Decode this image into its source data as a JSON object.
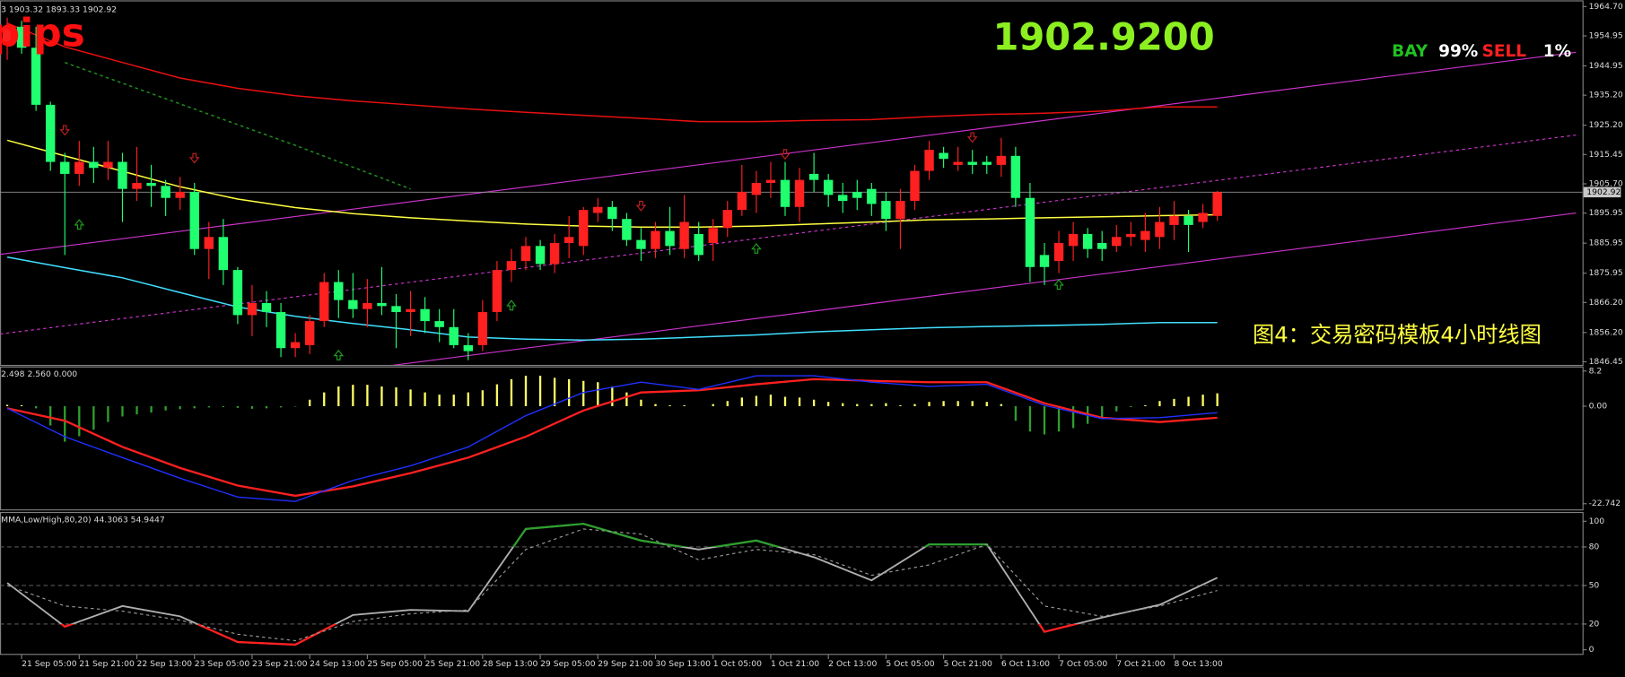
{
  "chart_data": [
    {
      "type": "candlestick",
      "header": "3 1903.32 1893.33 1902.92",
      "pips": "pips",
      "price_big": "1902.9200",
      "bay": "BAY",
      "bay_pct": "99%",
      "sell": "SELL",
      "sell_pct": "1%",
      "caption": "图4：交易密码模板4小时线图",
      "last_price": 1902.92,
      "up_color": "#ff2020",
      "down_color": "#20ff70",
      "open": [
        1952,
        1958,
        1951,
        1932,
        1913,
        1909,
        1913,
        1911,
        1913,
        1904,
        1906,
        1905,
        1901,
        1903,
        1884,
        1888,
        1877,
        1862,
        1866,
        1863,
        1851,
        1852,
        1860,
        1873,
        1867,
        1864,
        1866,
        1865,
        1863,
        1864,
        1860,
        1858,
        1852,
        1852,
        1863,
        1877,
        1880,
        1885,
        1879,
        1886,
        1885,
        1896,
        1898,
        1894,
        1887,
        1884,
        1890,
        1884,
        1889,
        1886,
        1891,
        1897,
        1902,
        1906,
        1907,
        1898,
        1909,
        1907,
        1902,
        1903,
        1904,
        1900,
        1894,
        1900,
        1910,
        1916,
        1912,
        1913,
        1913,
        1912,
        1915,
        1901,
        1882,
        1880,
        1885,
        1889,
        1886,
        1885,
        1888,
        1887,
        1888,
        1892,
        1895,
        1893,
        1895
      ],
      "high": [
        1961,
        1960,
        1958,
        1933,
        1916,
        1920,
        1918,
        1920,
        1916,
        1918,
        1912,
        1907,
        1908,
        1906,
        1893,
        1894,
        1878,
        1872,
        1870,
        1866,
        1856,
        1862,
        1876,
        1877,
        1876,
        1874,
        1878,
        1869,
        1870,
        1868,
        1864,
        1864,
        1856,
        1867,
        1880,
        1884,
        1888,
        1887,
        1889,
        1895,
        1898,
        1901,
        1900,
        1896,
        1891,
        1893,
        1898,
        1902,
        1893,
        1894,
        1900,
        1912,
        1910,
        1913,
        1913,
        1911,
        1916,
        1909,
        1906,
        1907,
        1906,
        1903,
        1904,
        1912,
        1920,
        1918,
        1918,
        1917,
        1915,
        1921,
        1918,
        1906,
        1886,
        1890,
        1893,
        1891,
        1890,
        1892,
        1893,
        1896,
        1898,
        1900,
        1897,
        1899,
        1903.32
      ],
      "low": [
        1947,
        1949,
        1930,
        1910,
        1882,
        1905,
        1906,
        1907,
        1893,
        1900,
        1898,
        1895,
        1897,
        1882,
        1874,
        1872,
        1859,
        1855,
        1858,
        1848,
        1848,
        1849,
        1858,
        1861,
        1861,
        1858,
        1862,
        1851,
        1855,
        1856,
        1853,
        1851,
        1847,
        1850,
        1860,
        1873,
        1877,
        1877,
        1876,
        1881,
        1882,
        1893,
        1890,
        1885,
        1880,
        1881,
        1882,
        1881,
        1880,
        1880,
        1888,
        1895,
        1896,
        1901,
        1895,
        1893,
        1903,
        1898,
        1896,
        1897,
        1895,
        1890,
        1884,
        1897,
        1907,
        1911,
        1910,
        1909,
        1909,
        1908,
        1898,
        1873,
        1872,
        1876,
        1880,
        1881,
        1880,
        1883,
        1885,
        1883,
        1884,
        1887,
        1883,
        1891,
        1893.33
      ],
      "close": [
        1958,
        1951,
        1932,
        1913,
        1909,
        1913,
        1911,
        1913,
        1904,
        1906,
        1905,
        1901,
        1903,
        1884,
        1888,
        1877,
        1862,
        1866,
        1863,
        1851,
        1853,
        1860,
        1873,
        1867,
        1864,
        1866,
        1865,
        1863,
        1864,
        1860,
        1858,
        1852,
        1850,
        1863,
        1877,
        1880,
        1885,
        1879,
        1886,
        1888,
        1897,
        1898,
        1894,
        1887,
        1884,
        1890,
        1885,
        1893,
        1882,
        1891,
        1897,
        1903,
        1906,
        1907,
        1898,
        1907,
        1907,
        1902,
        1900,
        1901,
        1899,
        1894,
        1900,
        1910,
        1917,
        1914,
        1913,
        1912,
        1912,
        1915,
        1901,
        1878,
        1878,
        1886,
        1889,
        1884,
        1884,
        1888,
        1889,
        1890,
        1893,
        1895,
        1892,
        1896,
        1902.92
      ],
      "ylim": [
        1846.45,
        1964.7
      ],
      "yticks": [
        {
          "value": 1964.7,
          "label": "1964.70"
        },
        1954.95,
        1944.95,
        {
          "value": 1935.2,
          "label": "1935.20"
        },
        {
          "value": 1925.2,
          "label": "1925.20"
        },
        1915.45,
        {
          "value": 1905.7,
          "label": "1905.70"
        },
        1895.95,
        1885.95,
        1875.95,
        {
          "value": 1866.2,
          "label": "1866.20"
        },
        {
          "value": 1856.2,
          "label": "1856.20"
        },
        1846.45
      ],
      "xlim": [
        -0.5,
        109.35
      ],
      "xticks": [
        {
          "value": 1,
          "label": "21 Sep 05:00"
        },
        {
          "value": 5,
          "label": "21 Sep 21:00"
        },
        {
          "value": 9,
          "label": "22 Sep 13:00"
        },
        {
          "value": 13,
          "label": "23 Sep 05:00"
        },
        {
          "value": 17,
          "label": "23 Sep 21:00"
        },
        {
          "value": 21,
          "label": "24 Sep 13:00"
        },
        {
          "value": 25,
          "label": "25 Sep 05:00"
        },
        {
          "value": 29,
          "label": "25 Sep 21:00"
        },
        {
          "value": 33,
          "label": "28 Sep 13:00"
        },
        {
          "value": 37,
          "label": "29 Sep 05:00"
        },
        {
          "value": 41,
          "label": "29 Sep 21:00"
        },
        {
          "value": 45,
          "label": "30 Sep 13:00"
        },
        {
          "value": 49,
          "label": "1 Oct 05:00"
        },
        {
          "value": 53,
          "label": "1 Oct 21:00"
        },
        {
          "value": 57,
          "label": "2 Oct 13:00"
        },
        {
          "value": 61,
          "label": "5 Oct 05:00"
        },
        {
          "value": 65,
          "label": "5 Oct 21:00"
        },
        {
          "value": 69,
          "label": "6 Oct 13:00"
        },
        {
          "value": 73,
          "label": "7 Oct 05:00"
        },
        {
          "value": 77,
          "label": "7 Oct 21:00"
        },
        {
          "value": 81,
          "label": "8 Oct 13:00"
        }
      ],
      "lines": [
        {
          "color": "#e81010",
          "x": [
            0,
            4,
            8,
            12,
            16,
            20,
            24,
            28,
            32,
            36,
            40,
            44,
            48,
            52,
            56,
            60,
            64,
            68,
            72,
            76,
            80,
            84
          ],
          "values": [
            1959.2,
            1951.3,
            1946.1,
            1940.9,
            1937.5,
            1935.0,
            1933.3,
            1932.0,
            1930.6,
            1929.5,
            1928.5,
            1927.5,
            1926.4,
            1926.4,
            1926.8,
            1927.1,
            1928.1,
            1928.8,
            1929.2,
            1929.9,
            1931.3,
            1931.3
          ]
        },
        {
          "color": "#ffff40",
          "x": [
            0,
            4,
            8,
            12,
            16,
            20,
            24,
            28,
            32,
            36,
            40,
            44,
            48,
            52,
            56,
            60,
            64,
            68,
            72,
            76,
            80,
            84
          ],
          "values": [
            1920.2,
            1915.0,
            1909.9,
            1904.7,
            1900.6,
            1897.8,
            1895.8,
            1894.4,
            1893.3,
            1892.3,
            1891.6,
            1891.3,
            1891.3,
            1891.6,
            1892.3,
            1893.0,
            1893.7,
            1894.0,
            1894.4,
            1894.7,
            1895.1,
            1895.4
          ]
        },
        {
          "color": "#40e0ff",
          "x": [
            0,
            4,
            8,
            12,
            16,
            20,
            24,
            28,
            32,
            36,
            40,
            44,
            48,
            52,
            56,
            60,
            64,
            68,
            72,
            76,
            80,
            84
          ],
          "values": [
            1881.3,
            1877.8,
            1874.4,
            1869.5,
            1864.7,
            1861.6,
            1859.2,
            1857.1,
            1854.7,
            1854.0,
            1853.7,
            1854.0,
            1854.7,
            1855.4,
            1856.4,
            1857.1,
            1857.8,
            1858.2,
            1858.5,
            1858.9,
            1859.5,
            1859.5
          ]
        },
        {
          "color": "#1f8f1f",
          "dash": true,
          "x": [
            4,
            12,
            20,
            28
          ],
          "values": [
            1946.1,
            1932.3,
            1918.5,
            1904.0
          ]
        }
      ],
      "trendlines": [
        {
          "color": "#cc33cc",
          "x": [
            -0.5,
            108.9
          ],
          "values": [
            1882.2,
            1949.5
          ]
        },
        {
          "color": "#cc33cc",
          "dash": true,
          "x": [
            -0.5,
            108.9
          ],
          "values": [
            1855.7,
            1921.9
          ]
        },
        {
          "color": "#cc33cc",
          "x": [
            26.8,
            108.9
          ],
          "values": [
            1845.3,
            1896.0
          ]
        }
      ],
      "up_arrows": {
        "color": "#1f9f1f",
        "x": [
          5,
          23,
          35,
          52,
          73
        ],
        "y": [
          1892.0,
          1848.5,
          1865.1,
          1884.0,
          1872.0
        ]
      },
      "down_arrows": {
        "color": "#c02020",
        "x": [
          4,
          13,
          44,
          54,
          67
        ],
        "y": [
          1923.7,
          1914.4,
          1898.5,
          1915.7,
          1921.3
        ]
      }
    },
    {
      "type": "macd",
      "header": "2.498 2.560 0.000",
      "ylim": [
        -23.7,
        8.9
      ],
      "yticks": [
        8.2,
        {
          "value": 0,
          "label": "0.00"
        },
        -22.742
      ],
      "pos_color": "#ffff66",
      "neg_color": "#2f9f2f",
      "values": [
        0.3,
        0.2,
        -0.5,
        -4.5,
        -8.3,
        -7,
        -5.5,
        -3.7,
        -2.4,
        -1.9,
        -1.5,
        -1.0,
        -0.7,
        -0.5,
        -0.3,
        -0.2,
        -0.4,
        -0.6,
        -0.5,
        -0.3,
        -0.1,
        1.5,
        3.2,
        4.6,
        5,
        5,
        4.6,
        4.4,
        3.9,
        3.2,
        2.7,
        2.7,
        3.2,
        3.7,
        5.1,
        6.3,
        7.1,
        7.1,
        6.6,
        6.3,
        5.9,
        5.6,
        4.6,
        3.2,
        1.5,
        0.5,
        0.2,
        0.2,
        0,
        0.5,
        1.2,
        2,
        2.4,
        2.7,
        2.2,
        2,
        1.5,
        1,
        0.7,
        0.5,
        0.5,
        0.7,
        0.2,
        0.5,
        1,
        1.2,
        1.2,
        1.2,
        1,
        0.5,
        -3.4,
        -5.9,
        -6.6,
        -5.9,
        -5.1,
        -4.1,
        -2.7,
        -1.2,
        -0.2,
        0.2,
        1.2,
        1.7,
        2.2,
        2.7,
        3
      ],
      "lines": [
        {
          "color": "#ff2020",
          "x": [
            0,
            4,
            8,
            12,
            16,
            20,
            24,
            28,
            32,
            36,
            40,
            44,
            48,
            52,
            56,
            60,
            64,
            68,
            72,
            76,
            80,
            84
          ],
          "values": [
            -0.5,
            -3.4,
            -9.5,
            -14.4,
            -18.5,
            -20.9,
            -18.7,
            -15.6,
            -12,
            -7.1,
            -1,
            3.2,
            3.7,
            5.1,
            6.3,
            5.9,
            5.6,
            5.6,
            0.7,
            -2.7,
            -3.7,
            -2.7
          ]
        },
        {
          "color": "#2030ff",
          "x": [
            0,
            4,
            8,
            12,
            16,
            20,
            24,
            28,
            32,
            36,
            40,
            44,
            48,
            52,
            56,
            60,
            64,
            68,
            72,
            76,
            80,
            84
          ],
          "values": [
            -0.5,
            -7.1,
            -12,
            -16.8,
            -21.2,
            -22.2,
            -17.3,
            -13.9,
            -9.5,
            -2.2,
            3.2,
            5.6,
            3.9,
            7.1,
            7.1,
            5.6,
            4.6,
            5.1,
            0.2,
            -2.9,
            -2.7,
            -1.5
          ]
        }
      ]
    },
    {
      "type": "stochastic",
      "header": "MMA,Low/High,80,20) 44.3063 54.9447",
      "ylim": [
        -2.4,
        105.6
      ],
      "yticks": [
        0,
        20,
        50,
        80,
        100
      ],
      "levels": [
        20,
        50,
        80
      ],
      "high_color": "#2f9f2f",
      "low_color": "#ff2020",
      "lines": [
        {
          "color": "#b0b0b0",
          "x": [
            0,
            4,
            8,
            12,
            16,
            20,
            24,
            28,
            32,
            36,
            40,
            44,
            48,
            52,
            56,
            60,
            64,
            68,
            72,
            76,
            80,
            84
          ],
          "values": [
            52,
            18,
            34,
            26,
            6,
            4,
            27,
            31,
            30,
            94,
            98,
            85,
            78,
            85,
            72,
            54,
            82,
            82,
            14,
            25,
            35,
            56
          ]
        },
        {
          "color": "#9a9a9a",
          "dash": true,
          "x": [
            0,
            4,
            8,
            12,
            16,
            20,
            24,
            28,
            32,
            36,
            40,
            44,
            48,
            52,
            56,
            60,
            64,
            68,
            72,
            76,
            80,
            84
          ],
          "values": [
            50,
            34,
            30,
            23,
            12,
            7,
            22,
            28,
            31,
            78,
            94,
            90,
            70,
            78,
            74,
            58,
            66,
            82,
            34,
            26,
            34,
            46
          ]
        }
      ]
    }
  ]
}
